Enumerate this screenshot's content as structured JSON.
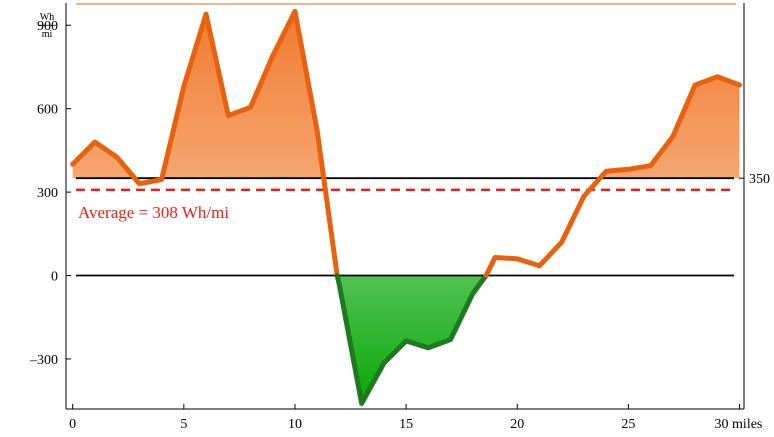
{
  "chart_data": {
    "type": "area",
    "title": "",
    "xlabel": "",
    "ylabel": "",
    "xlim": [
      -0.3,
      30.2
    ],
    "ylim": [
      -480,
      980
    ],
    "grid": false,
    "x_ticks": [
      0,
      5,
      10,
      15,
      20,
      25,
      30
    ],
    "x_tick_labels": [
      "0",
      "5",
      "10",
      "15",
      "20",
      "25",
      "30 miles"
    ],
    "y_ticks": [
      -300,
      0,
      300,
      600,
      900
    ],
    "y_tick_labels": [
      "–300",
      "0",
      "300",
      "600",
      "900"
    ],
    "y_unit": {
      "numerator": "Wh",
      "denominator": "mi"
    },
    "reference_lines": [
      {
        "value": 350,
        "label": "350",
        "style": "solid",
        "color": "#000000"
      },
      {
        "value": 0,
        "label": "",
        "style": "solid",
        "color": "#000000"
      },
      {
        "value": 308,
        "label": "Average = 308 Wh/mi",
        "style": "dashed",
        "color": "#e8211c"
      }
    ],
    "colors": {
      "line": "#e8620e",
      "positive_fill_top": "#f07a30",
      "positive_fill_bottom": "#fde2c8",
      "negative_line": "#1e7a1e",
      "negative_fill_top": "#e6f7e6",
      "negative_fill_bottom": "#0aa80a",
      "average": "#e8211c",
      "top_rule": "#f2b48e"
    },
    "series": [
      {
        "x": [
          0,
          1,
          2,
          3,
          4,
          5,
          6,
          7,
          8,
          9,
          10,
          11,
          11.9,
          12,
          13,
          14,
          15,
          16,
          17,
          18,
          18.6,
          19,
          20,
          21,
          22,
          23,
          24,
          25,
          26,
          27,
          28,
          29,
          30
        ],
        "values": [
          400,
          480,
          425,
          330,
          345,
          680,
          940,
          575,
          605,
          790,
          950,
          520,
          0,
          -35,
          -460,
          -315,
          -235,
          -260,
          -230,
          -65,
          0,
          65,
          60,
          35,
          120,
          285,
          375,
          382,
          395,
          500,
          685,
          715,
          685
        ]
      }
    ]
  }
}
